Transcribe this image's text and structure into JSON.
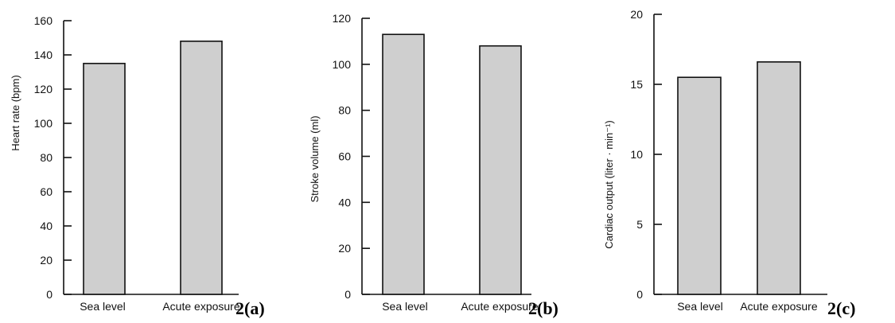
{
  "colors": {
    "bar_fill": "#cfcfcf",
    "axis": "#111111"
  },
  "chart_data": [
    {
      "type": "bar",
      "panel_label": "2(a)",
      "categories": [
        "Sea level",
        "Acute exposure"
      ],
      "values": [
        135,
        148
      ],
      "ylabel": "Heart rate (bpm)",
      "xlabel": "",
      "title": "",
      "ylim": [
        0,
        160
      ],
      "yticks": [
        0,
        20,
        40,
        60,
        80,
        100,
        120,
        140,
        160
      ],
      "grid": false
    },
    {
      "type": "bar",
      "panel_label": "2(b)",
      "categories": [
        "Sea level",
        "Acute exposure"
      ],
      "values": [
        113,
        108
      ],
      "ylabel": "Stroke volume (ml)",
      "xlabel": "",
      "title": "",
      "ylim": [
        0,
        120
      ],
      "yticks": [
        0,
        20,
        40,
        60,
        80,
        100,
        120
      ],
      "grid": false
    },
    {
      "type": "bar",
      "panel_label": "2(c)",
      "categories": [
        "Sea level",
        "Acute exposure"
      ],
      "values": [
        15.5,
        16.6
      ],
      "ylabel": "Cardiac output (liter · min⁻¹)",
      "xlabel": "",
      "title": "",
      "ylim": [
        0,
        20
      ],
      "yticks": [
        0,
        5,
        10,
        15,
        20
      ],
      "grid": false
    }
  ]
}
